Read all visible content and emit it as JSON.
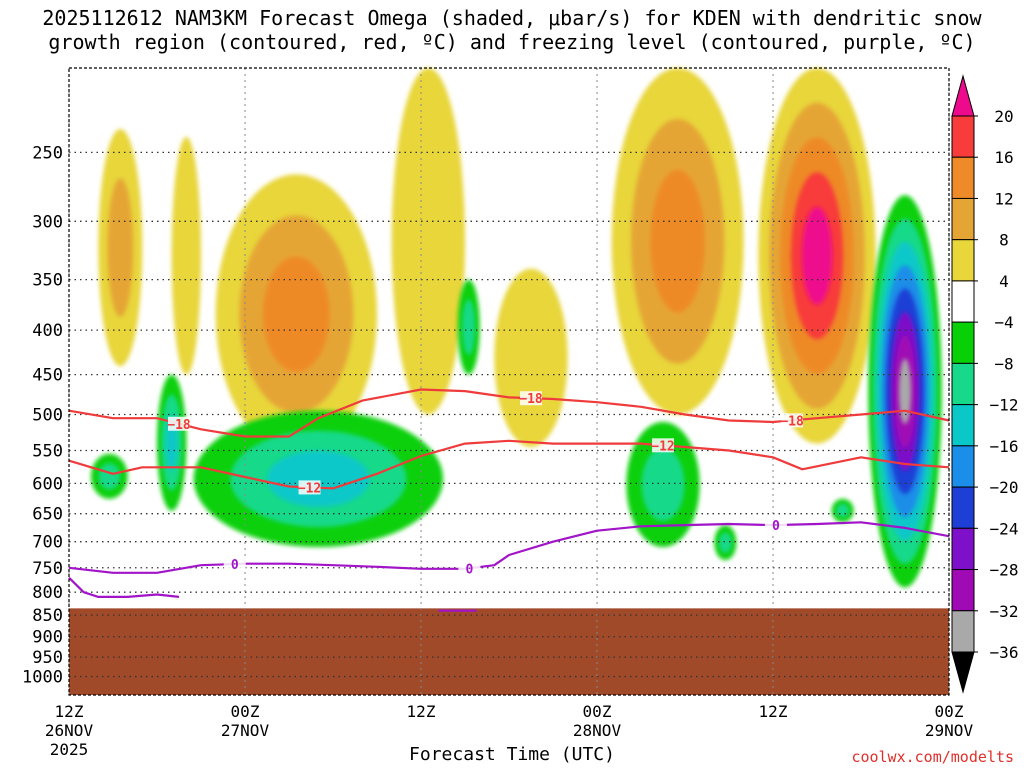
{
  "title": {
    "line1": "2025112612 NAM3KM Forecast Omega (shaded, μbar/s) for KDEN with dendritic snow",
    "line2": "growth region (contoured, red, ºC) and freezing level (contoured, purple, ºC)"
  },
  "credit": "coolwx.com/modelts",
  "chart_data": {
    "type": "heatmap",
    "title": "2025112612 NAM3KM Forecast Omega (shaded, μbar/s) for KDEN with dendritic snow growth region (contoured, red, ºC) and freezing level (contoured, purple, ºC)",
    "xlabel": "Forecast Time (UTC)",
    "ylabel": "",
    "y_log_pressure": true,
    "ylim": [
      1050,
      200
    ],
    "xlim_hours": [
      0,
      60
    ],
    "x_ticks": [
      {
        "hour": 0,
        "label": "12Z",
        "sub1": "26NOV",
        "sub2": "2025"
      },
      {
        "hour": 12,
        "label": "00Z",
        "sub1": "27NOV",
        "sub2": ""
      },
      {
        "hour": 24,
        "label": "12Z",
        "sub1": "",
        "sub2": ""
      },
      {
        "hour": 36,
        "label": "00Z",
        "sub1": "28NOV",
        "sub2": ""
      },
      {
        "hour": 48,
        "label": "12Z",
        "sub1": "",
        "sub2": ""
      },
      {
        "hour": 60,
        "label": "00Z",
        "sub1": "29NOV",
        "sub2": ""
      }
    ],
    "y_ticks": [
      250,
      300,
      350,
      400,
      450,
      500,
      550,
      600,
      650,
      700,
      750,
      800,
      850,
      900,
      950,
      1000
    ],
    "colorbar": {
      "labels": [
        "20",
        "16",
        "12",
        "8",
        "4",
        "−4",
        "−8",
        "−12",
        "−16",
        "−20",
        "−24",
        "−28",
        "−32",
        "−36"
      ],
      "colors_top_to_bottom": [
        "#ee0a8c",
        "#f83b3b",
        "#ee8a27",
        "#e5a535",
        "#e8d63a",
        "#ffffff",
        "#07d007",
        "#18d98a",
        "#0ac8c8",
        "#1a8ee8",
        "#1e3fd6",
        "#7d10c8",
        "#a00ab4",
        "#a9a9a9",
        "#000000"
      ]
    },
    "ground": {
      "color": "#a14a2a",
      "pressure_hpa": 835
    },
    "omega_positive_regions": [
      {
        "hour_range": [
          2,
          5
        ],
        "p_range": [
          235,
          440
        ],
        "max": 8
      },
      {
        "hour_range": [
          7,
          9
        ],
        "p_range": [
          240,
          450
        ],
        "max": 4
      },
      {
        "hour_range": [
          10,
          21
        ],
        "p_range": [
          265,
          555
        ],
        "max": 14
      },
      {
        "hour_range": [
          22,
          27
        ],
        "p_range": [
          200,
          500
        ],
        "max": 4
      },
      {
        "hour_range": [
          29,
          34
        ],
        "p_range": [
          340,
          545
        ],
        "max": 4
      },
      {
        "hour_range": [
          37,
          46
        ],
        "p_range": [
          200,
          500
        ],
        "max": 14
      },
      {
        "hour_range": [
          47,
          55
        ],
        "p_range": [
          200,
          540
        ],
        "max": 24
      }
    ],
    "omega_negative_regions": [
      {
        "hour_range": [
          1.5,
          4
        ],
        "p_range": [
          555,
          625
        ],
        "min": -8
      },
      {
        "hour_range": [
          6,
          8
        ],
        "p_range": [
          450,
          645
        ],
        "min": -12
      },
      {
        "hour_range": [
          8.5,
          25.5
        ],
        "p_range": [
          495,
          710
        ],
        "min": -12
      },
      {
        "hour_range": [
          26.5,
          28
        ],
        "p_range": [
          350,
          450
        ],
        "min": -8
      },
      {
        "hour_range": [
          38,
          43
        ],
        "p_range": [
          510,
          710
        ],
        "min": -8
      },
      {
        "hour_range": [
          44,
          45.5
        ],
        "p_range": [
          670,
          735
        ],
        "min": -8
      },
      {
        "hour_range": [
          52,
          53.5
        ],
        "p_range": [
          625,
          665
        ],
        "min": -8
      },
      {
        "hour_range": [
          54.5,
          59.5
        ],
        "p_range": [
          280,
          790
        ],
        "min": -36
      }
    ],
    "series": [
      {
        "name": "-18",
        "color": "#ef3b3b",
        "x": [
          0,
          3,
          6,
          9,
          12,
          15,
          17,
          20,
          24,
          27,
          30,
          33,
          36,
          39,
          42,
          45,
          48,
          51,
          54,
          57,
          60
        ],
        "y": [
          495,
          505,
          505,
          520,
          530,
          530,
          505,
          482,
          468,
          470,
          478,
          480,
          484,
          490,
          500,
          508,
          510,
          505,
          500,
          495,
          508
        ],
        "labels": [
          {
            "x": 7.5,
            "text": "−18"
          },
          {
            "x": 31.5,
            "text": "−18"
          },
          {
            "x": 49.3,
            "text": "−18"
          }
        ]
      },
      {
        "name": "-12",
        "color": "#ef3b3b",
        "x": [
          0,
          3,
          5,
          9,
          12,
          15,
          18,
          21,
          24,
          27,
          30,
          33,
          36,
          39,
          42,
          45,
          48,
          50,
          54,
          57,
          60
        ],
        "y": [
          565,
          585,
          575,
          575,
          590,
          605,
          608,
          585,
          558,
          540,
          536,
          540,
          540,
          540,
          545,
          550,
          560,
          578,
          560,
          570,
          575
        ],
        "labels": [
          {
            "x": 16.4,
            "text": "−12"
          },
          {
            "x": 40.5,
            "text": "−12"
          }
        ]
      },
      {
        "name": "0",
        "color": "#a114c8",
        "x": [
          0,
          3,
          6,
          9,
          12,
          15,
          18,
          21,
          24,
          27,
          29,
          30,
          33,
          36,
          39,
          42,
          45,
          48,
          51,
          54,
          57,
          60
        ],
        "y": [
          750,
          760,
          760,
          745,
          742,
          742,
          745,
          748,
          752,
          752,
          745,
          725,
          700,
          680,
          672,
          670,
          668,
          670,
          668,
          665,
          675,
          690
        ],
        "labels": [
          {
            "x": 11.3,
            "text": "0"
          },
          {
            "x": 27.3,
            "text": "0"
          },
          {
            "x": 48.2,
            "text": "0"
          }
        ]
      },
      {
        "name": "0b",
        "color": "#a114c8",
        "x": [
          0,
          1,
          2,
          4,
          6,
          7.5
        ],
        "y": [
          770,
          800,
          810,
          810,
          805,
          810
        ]
      },
      {
        "name": "0c",
        "color": "#a114c8",
        "x": [
          25.2,
          27.8
        ],
        "y": [
          840,
          840
        ]
      }
    ]
  }
}
